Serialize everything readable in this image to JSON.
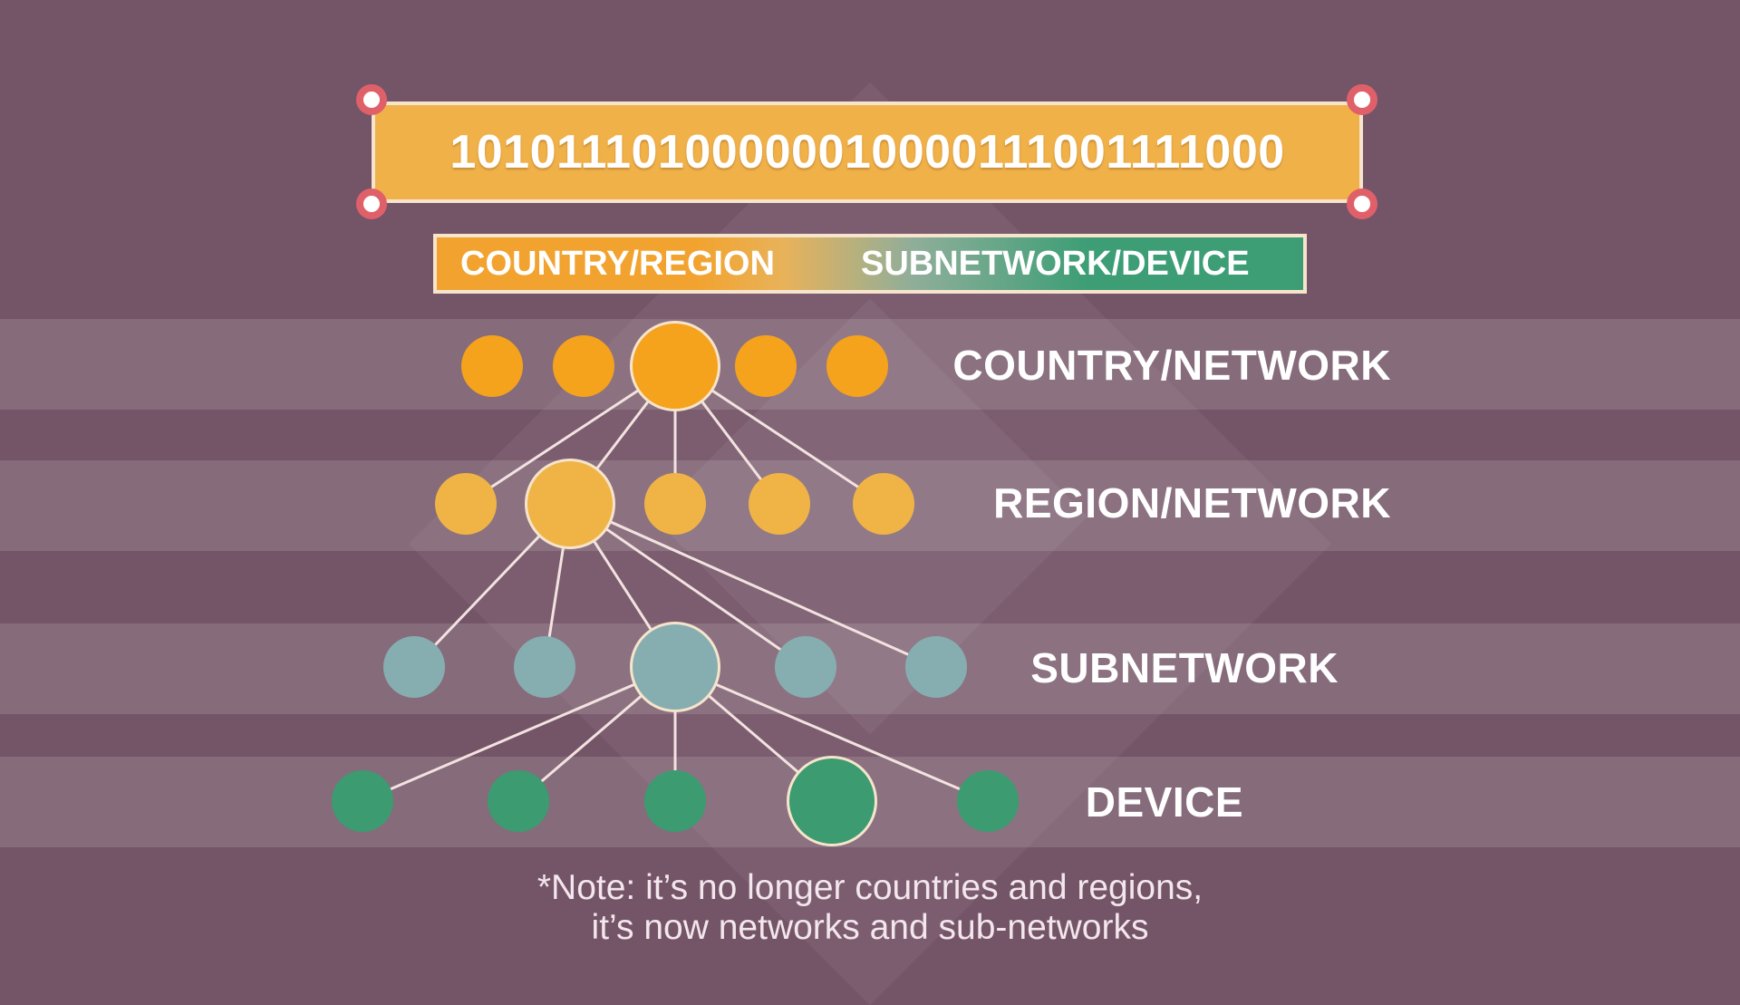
{
  "binary_address": "10101110100000010000111001111000",
  "legend": {
    "left_label": "COUNTRY/REGION",
    "right_label": "SUBNETWORK/DEVICE"
  },
  "levels": [
    {
      "id": "country",
      "label": "COUNTRY/NETWORK",
      "color": "#f5a21d",
      "node_count": 5,
      "highlighted_index": 2
    },
    {
      "id": "region",
      "label": "REGION/NETWORK",
      "color": "#f0b446",
      "node_count": 5,
      "highlighted_index": 1
    },
    {
      "id": "subnetwork",
      "label": "SUBNETWORK",
      "color": "#86aeb1",
      "node_count": 5,
      "highlighted_index": 2
    },
    {
      "id": "device",
      "label": "DEVICE",
      "color": "#3c9b70",
      "node_count": 5,
      "highlighted_index": 3
    }
  ],
  "note": {
    "line1": "*Note: it’s no longer countries and regions,",
    "line2": "it’s now networks and sub-networks"
  },
  "colors": {
    "background": "#745568",
    "address_bar": "#f1b149",
    "handle_ring": "#e0606a",
    "connector": "#f3e3e0"
  }
}
